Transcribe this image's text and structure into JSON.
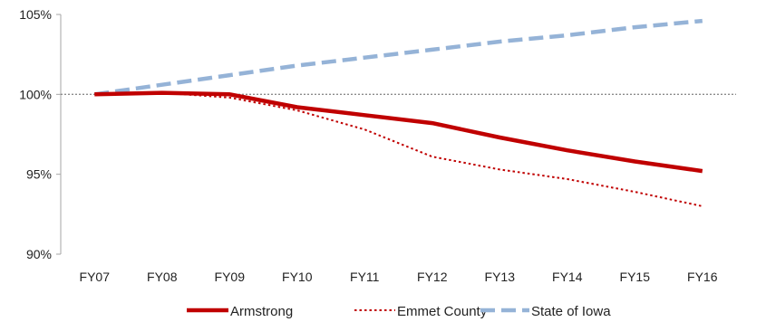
{
  "chart_data": {
    "type": "line",
    "title": "",
    "xlabel": "",
    "ylabel": "",
    "x": [
      "FY07",
      "FY08",
      "FY09",
      "FY10",
      "FY11",
      "FY12",
      "FY13",
      "FY14",
      "FY15",
      "FY16"
    ],
    "ylim": [
      90,
      105
    ],
    "yticks": [
      90,
      95,
      100,
      105
    ],
    "ytick_labels": [
      "90%",
      "95%",
      "100%",
      "105%"
    ],
    "reference_line": 100,
    "grid": false,
    "legend_position": "bottom",
    "series": [
      {
        "name": "Armstrong",
        "values": [
          100.0,
          100.1,
          100.0,
          99.2,
          98.7,
          98.2,
          97.3,
          96.5,
          95.8,
          95.2
        ],
        "color": "#c00000",
        "style": "solid"
      },
      {
        "name": "Emmet County",
        "values": [
          100.0,
          100.1,
          99.8,
          99.0,
          97.8,
          96.1,
          95.3,
          94.7,
          93.9,
          93.0
        ],
        "color": "#c00000",
        "style": "dotted"
      },
      {
        "name": "State of Iowa",
        "values": [
          100.0,
          100.6,
          101.2,
          101.8,
          102.3,
          102.8,
          103.3,
          103.7,
          104.2,
          104.6
        ],
        "color": "#95b3d7",
        "style": "dashed"
      }
    ]
  }
}
